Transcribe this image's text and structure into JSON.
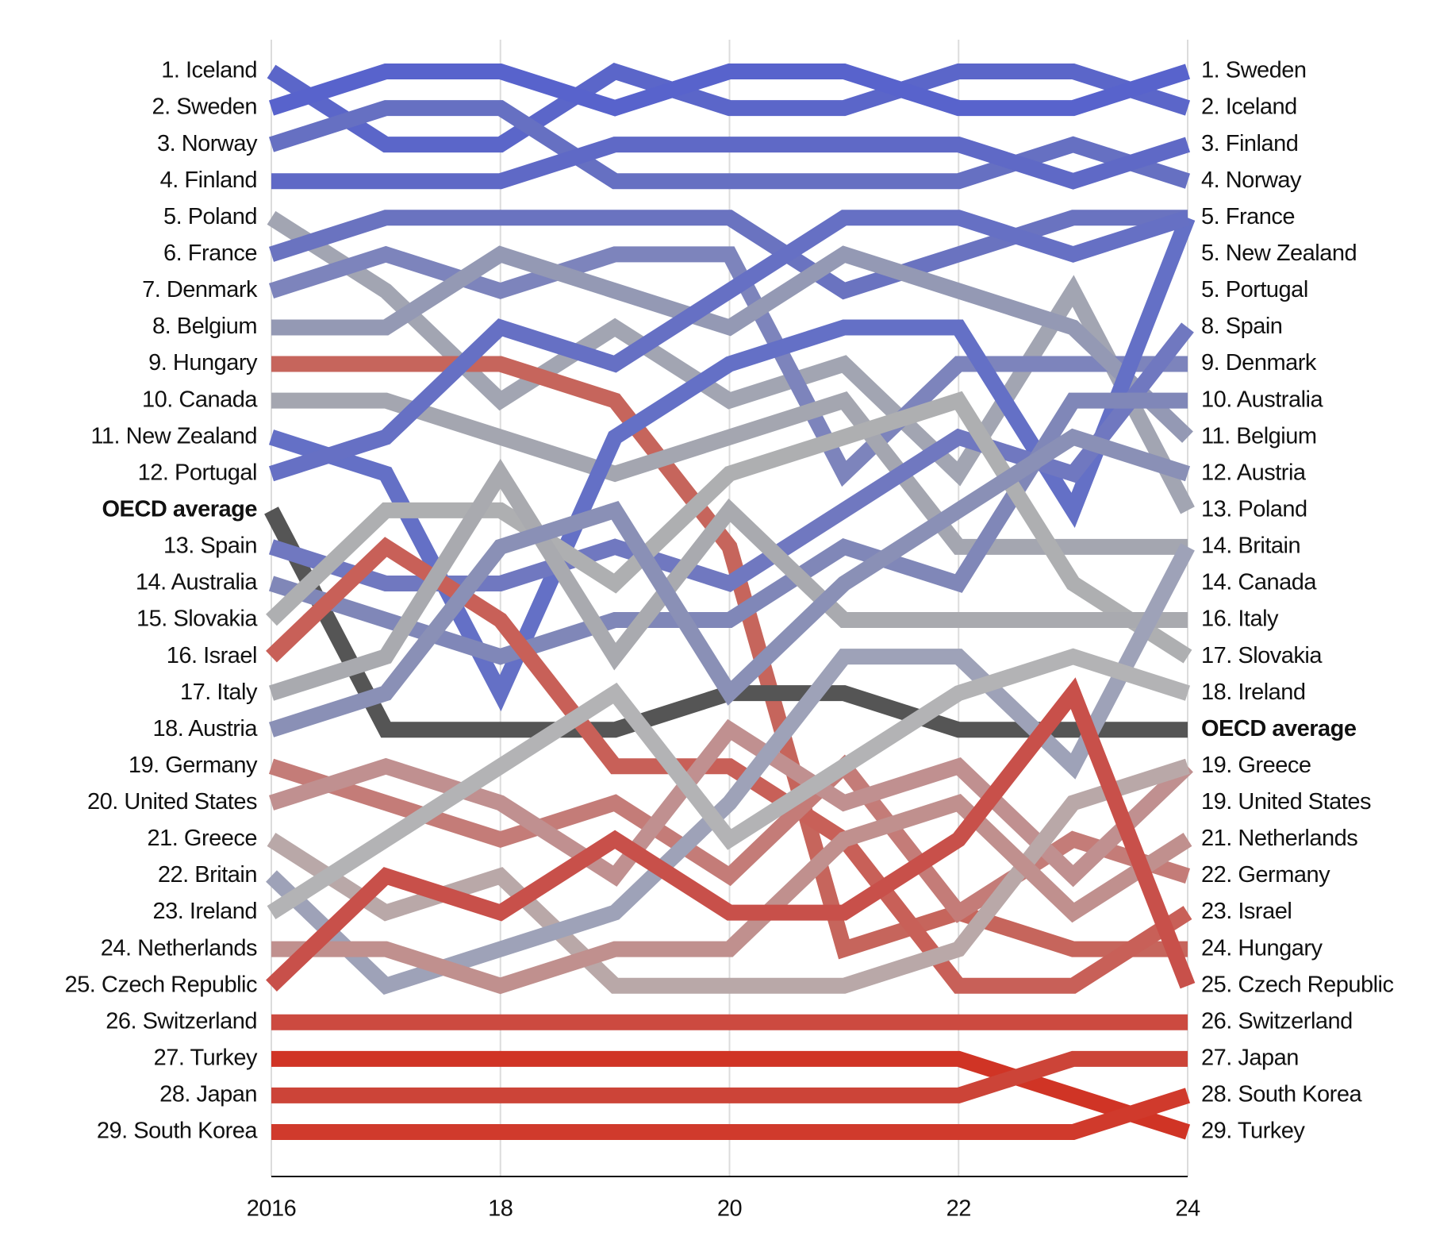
{
  "chart_data": {
    "type": "bump",
    "x": [
      2016,
      2017,
      2018,
      2019,
      2020,
      2021,
      2022,
      2023,
      2024
    ],
    "xlim": [
      2016,
      2024
    ],
    "xticks": [
      2016,
      {
        "value": 2018,
        "label": "18"
      },
      {
        "value": 2020,
        "label": "20"
      },
      {
        "value": 2022,
        "label": "22"
      },
      {
        "value": 2024,
        "label": "24"
      }
    ],
    "ylim": [
      1,
      30
    ],
    "grid": true,
    "left_labels": [
      "1. Iceland",
      "2. Sweden",
      "3. Norway",
      "4. Finland",
      "5. Poland",
      "6. France",
      "7. Denmark",
      "8. Belgium",
      "9. Hungary",
      "10. Canada",
      "11. New Zealand",
      "12. Portugal",
      {
        "text": "OECD average",
        "bold": true
      },
      "13. Spain",
      "14. Australia",
      "15. Slovakia",
      "16. Israel",
      "17. Italy",
      "18. Austria",
      "19. Germany",
      "20. United States",
      "21. Greece",
      "22. Britain",
      "23. Ireland",
      "24. Netherlands",
      "25. Czech Republic",
      "26. Switzerland",
      "27. Turkey",
      "28. Japan",
      "29. South Korea"
    ],
    "right_labels": [
      "1. Sweden",
      "2. Iceland",
      "3. Finland",
      "4. Norway",
      "5. France",
      "5. New Zealand",
      "5. Portugal",
      "8. Spain",
      "9. Denmark",
      "10. Australia",
      "11. Belgium",
      "12. Austria",
      "13. Poland",
      "14. Britain",
      "14. Canada",
      "16. Italy",
      "17. Slovakia",
      "18. Ireland",
      {
        "text": "OECD average",
        "bold": true
      },
      "19. Greece",
      "19. United States",
      "21. Netherlands",
      "22. Germany",
      "23. Israel",
      "24. Hungary",
      "25. Czech Republic",
      "26. Switzerland",
      "27. Japan",
      "28. South Korea",
      "29. Turkey"
    ],
    "series": [
      {
        "color": "#5b66c9",
        "values": [
          1,
          3,
          3,
          1,
          2,
          2,
          1,
          1,
          2
        ]
      },
      {
        "color": "#5863cc",
        "values": [
          2,
          1,
          1,
          2,
          1,
          1,
          2,
          2,
          1
        ]
      },
      {
        "color": "#6670c2",
        "values": [
          3,
          2,
          2,
          4,
          4,
          4,
          4,
          3,
          4
        ]
      },
      {
        "color": "#5f69c6",
        "values": [
          4,
          4,
          4,
          3,
          3,
          3,
          3,
          4,
          3
        ]
      },
      {
        "color": "#a2a5b2",
        "values": [
          5,
          7,
          10,
          8,
          10,
          9,
          12,
          7,
          13
        ]
      },
      {
        "color": "#6a73c0",
        "values": [
          6,
          5,
          5,
          5,
          5,
          7,
          6,
          5,
          5
        ]
      },
      {
        "color": "#7d84bc",
        "values": [
          7,
          6,
          7,
          6,
          6,
          12,
          9,
          9,
          9
        ]
      },
      {
        "color": "#9499b4",
        "values": [
          8,
          8,
          6,
          7,
          8,
          6,
          7,
          8,
          11
        ]
      },
      {
        "color": "#c6655c",
        "values": [
          9,
          9,
          9,
          10,
          14,
          25,
          24,
          25,
          25
        ]
      },
      {
        "color": "#a4a6b0",
        "values": [
          10,
          10,
          11,
          12,
          11,
          10,
          14,
          14,
          14
        ]
      },
      {
        "color": "#6470c6",
        "values": [
          11,
          12,
          18,
          11,
          9,
          8,
          8,
          13,
          5
        ]
      },
      {
        "color": "#6670c4",
        "values": [
          12,
          11,
          8,
          9,
          7,
          5,
          5,
          6,
          5
        ]
      },
      {
        "color": "#555555",
        "values": [
          13,
          19,
          19,
          19,
          18,
          18,
          19,
          19,
          19
        ]
      },
      {
        "color": "#7078c0",
        "values": [
          14,
          15,
          15,
          14,
          15,
          13,
          11,
          12,
          8
        ]
      },
      {
        "color": "#8087b8",
        "values": [
          15,
          16,
          17,
          16,
          16,
          14,
          15,
          10,
          10
        ]
      },
      {
        "color": "#aeafb1",
        "values": [
          16,
          13,
          13,
          15,
          12,
          11,
          10,
          15,
          17
        ]
      },
      {
        "color": "#c86058",
        "values": [
          17,
          14,
          16,
          20,
          20,
          22,
          26,
          26,
          24
        ]
      },
      {
        "color": "#a9aaaf",
        "values": [
          18,
          17,
          12,
          17,
          13,
          16,
          16,
          16,
          16
        ]
      },
      {
        "color": "#8a90b6",
        "values": [
          19,
          18,
          14,
          13,
          18,
          15,
          13,
          11,
          12
        ]
      },
      {
        "color": "#c47c78",
        "values": [
          20,
          21,
          22,
          21,
          23,
          20,
          24,
          22,
          23
        ]
      },
      {
        "color": "#c09090",
        "values": [
          21,
          20,
          21,
          23,
          19,
          21,
          20,
          23,
          20
        ]
      },
      {
        "color": "#b9a8a8",
        "values": [
          22,
          24,
          23,
          26,
          26,
          26,
          25,
          21,
          20
        ]
      },
      {
        "color": "#9ea2b8",
        "values": [
          23,
          26,
          25,
          24,
          21,
          17,
          17,
          20,
          14
        ]
      },
      {
        "color": "#b3b3b5",
        "values": [
          24,
          22,
          20,
          18,
          22,
          20,
          18,
          17,
          18
        ]
      },
      {
        "color": "#c0908e",
        "values": [
          25,
          25,
          26,
          25,
          25,
          22,
          21,
          24,
          22
        ]
      },
      {
        "color": "#c8504a",
        "values": [
          26,
          23,
          24,
          22,
          24,
          24,
          22,
          18,
          26
        ]
      },
      {
        "color": "#cc4a40",
        "values": [
          27,
          27,
          27,
          27,
          27,
          27,
          27,
          27,
          27
        ]
      },
      {
        "color": "#d03425",
        "values": [
          28,
          28,
          28,
          28,
          28,
          28,
          28,
          29,
          30
        ]
      },
      {
        "color": "#cc4438",
        "values": [
          29,
          29,
          29,
          29,
          29,
          29,
          29,
          28,
          28
        ]
      },
      {
        "color": "#d03a2c",
        "values": [
          30,
          30,
          30,
          30,
          30,
          30,
          30,
          30,
          29
        ]
      }
    ]
  }
}
